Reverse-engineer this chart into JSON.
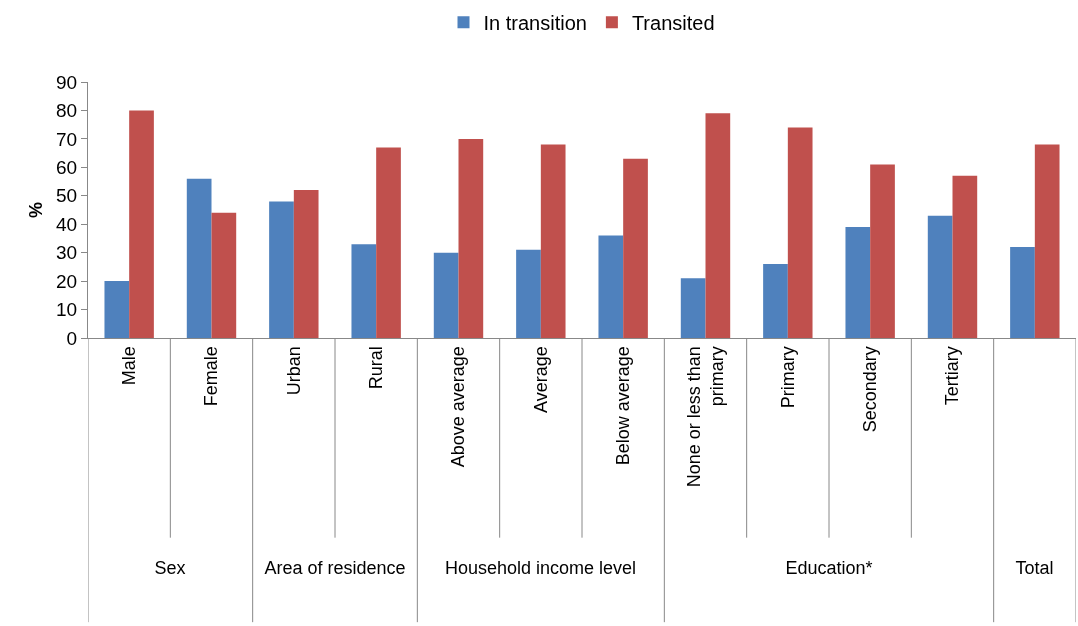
{
  "chart_data": {
    "type": "bar",
    "ylabel": "%",
    "categories": [
      "Male",
      "Female",
      "Urban",
      "Rural",
      "Above average",
      "Average",
      "Below average",
      "None or less than primary",
      "Primary",
      "Secondary",
      "Tertiary",
      null
    ],
    "series": [
      {
        "name": "In transition",
        "color": "#4f81bd",
        "values": [
          20,
          56,
          48,
          33,
          30,
          31,
          36,
          21,
          26,
          39,
          43,
          32
        ]
      },
      {
        "name": "Transited",
        "color": "#c0504d",
        "values": [
          80,
          44,
          52,
          67,
          70,
          68,
          63,
          79,
          74,
          61,
          57,
          68
        ]
      }
    ],
    "ylim": [
      0,
      90
    ],
    "yticks": [
      0,
      10,
      20,
      30,
      40,
      50,
      60,
      70,
      80,
      90
    ],
    "grid": false,
    "legend": "top",
    "annotations": [
      "Sex",
      "Area of residence",
      "Household income level",
      "Education*",
      "Total"
    ]
  }
}
